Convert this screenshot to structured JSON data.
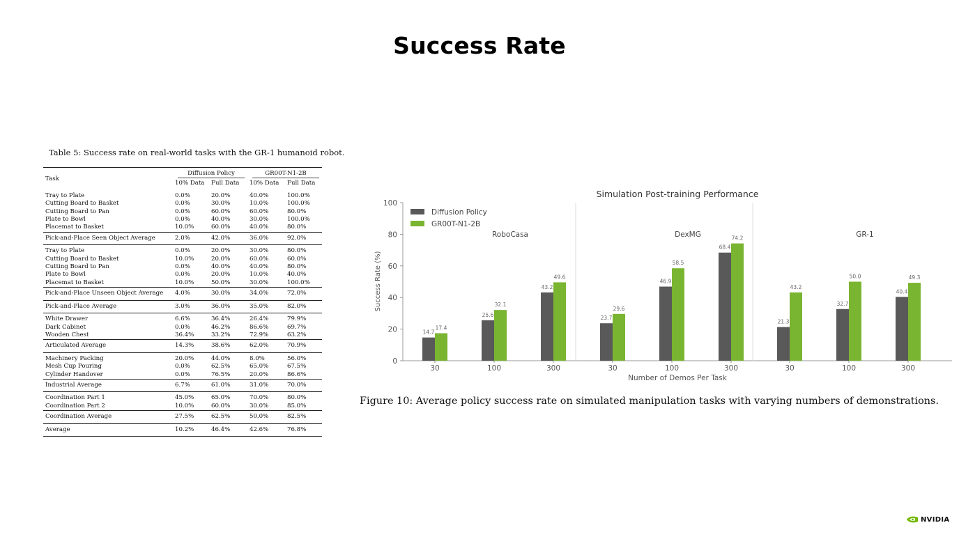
{
  "slide": {
    "title": "Success Rate",
    "brand": "NVIDIA"
  },
  "colors": {
    "diffusion": "#595959",
    "groot": "#7ab531",
    "nvidia_green": "#76b900"
  },
  "table": {
    "caption": "Table 5: Success rate on real-world tasks with the GR-1 humanoid robot.",
    "task_header": "Task",
    "group_headers": [
      "Diffusion Policy",
      "GR00T-N1-2B"
    ],
    "sub_headers": [
      "10% Data",
      "Full Data",
      "10% Data",
      "Full Data"
    ],
    "rows": [
      {
        "task": "Tray to Plate",
        "vals": [
          "0.0%",
          "20.0%",
          "40.0%",
          "100.0%"
        ]
      },
      {
        "task": "Cutting Board to Basket",
        "vals": [
          "0.0%",
          "30.0%",
          "10.0%",
          "100.0%"
        ]
      },
      {
        "task": "Cutting Board to Pan",
        "vals": [
          "0.0%",
          "60.0%",
          "60.0%",
          "80.0%"
        ]
      },
      {
        "task": "Plate to Bowl",
        "vals": [
          "0.0%",
          "40.0%",
          "30.0%",
          "100.0%"
        ]
      },
      {
        "task": "Placemat to Basket",
        "vals": [
          "10.0%",
          "60.0%",
          "40.0%",
          "80.0%"
        ]
      },
      {
        "task": "Pick-and-Place Seen Object Average",
        "vals": [
          "2.0%",
          "42.0%",
          "36.0%",
          "92.0%"
        ]
      },
      {
        "task": "Tray to Plate",
        "vals": [
          "0.0%",
          "20.0%",
          "30.0%",
          "80.0%"
        ]
      },
      {
        "task": "Cutting Board to Basket",
        "vals": [
          "10.0%",
          "20.0%",
          "60.0%",
          "60.0%"
        ]
      },
      {
        "task": "Cutting Board to Pan",
        "vals": [
          "0.0%",
          "40.0%",
          "40.0%",
          "80.0%"
        ]
      },
      {
        "task": "Plate to Bowl",
        "vals": [
          "0.0%",
          "20.0%",
          "10.0%",
          "40.0%"
        ]
      },
      {
        "task": "Placemat to Basket",
        "vals": [
          "10.0%",
          "50.0%",
          "30.0%",
          "100.0%"
        ]
      },
      {
        "task": "Pick-and-Place Unseen Object Average",
        "vals": [
          "4.0%",
          "30.0%",
          "34.0%",
          "72.0%"
        ]
      },
      {
        "task": "Pick-and-Place Average",
        "vals": [
          "3.0%",
          "36.0%",
          "35.0%",
          "82.0%"
        ]
      },
      {
        "task": "White Drawer",
        "vals": [
          "6.6%",
          "36.4%",
          "26.4%",
          "79.9%"
        ]
      },
      {
        "task": "Dark Cabinet",
        "vals": [
          "0.0%",
          "46.2%",
          "86.6%",
          "69.7%"
        ]
      },
      {
        "task": "Wooden Chest",
        "vals": [
          "36.4%",
          "33.2%",
          "72.9%",
          "63.2%"
        ]
      },
      {
        "task": "Articulated Average",
        "vals": [
          "14.3%",
          "38.6%",
          "62.0%",
          "70.9%"
        ]
      },
      {
        "task": "Machinery Packing",
        "vals": [
          "20.0%",
          "44.0%",
          "8.0%",
          "56.0%"
        ]
      },
      {
        "task": "Mesh Cup Pouring",
        "vals": [
          "0.0%",
          "62.5%",
          "65.0%",
          "67.5%"
        ]
      },
      {
        "task": "Cylinder Handover",
        "vals": [
          "0.0%",
          "76.5%",
          "20.0%",
          "86.6%"
        ]
      },
      {
        "task": "Industrial Average",
        "vals": [
          "6.7%",
          "61.0%",
          "31.0%",
          "70.0%"
        ]
      },
      {
        "task": "Coordination Part 1",
        "vals": [
          "45.0%",
          "65.0%",
          "70.0%",
          "80.0%"
        ]
      },
      {
        "task": "Coordination Part 2",
        "vals": [
          "10.0%",
          "60.0%",
          "30.0%",
          "85.0%"
        ]
      },
      {
        "task": "Coordination Average",
        "vals": [
          "27.5%",
          "62.5%",
          "50.0%",
          "82.5%"
        ]
      },
      {
        "task": "Average",
        "vals": [
          "10.2%",
          "46.4%",
          "42.6%",
          "76.8%"
        ]
      }
    ]
  },
  "chart_data": {
    "type": "bar",
    "title": "Simulation Post-training Performance",
    "xlabel": "Number of Demos Per Task",
    "ylabel": "Success Rate (%)",
    "ylim": [
      0,
      100
    ],
    "yticks": [
      0,
      20,
      40,
      60,
      80,
      100
    ],
    "grid": false,
    "legend_position": "top-left",
    "groups": [
      "RoboCasa",
      "DexMG",
      "GR-1"
    ],
    "categories": [
      "30",
      "100",
      "300",
      "30",
      "100",
      "300",
      "30",
      "100",
      "300"
    ],
    "series": [
      {
        "name": "Diffusion Policy",
        "values": [
          14.7,
          25.6,
          43.2,
          23.7,
          46.9,
          68.4,
          21.3,
          32.7,
          40.4
        ]
      },
      {
        "name": "GR00T-N1-2B",
        "values": [
          17.4,
          32.1,
          49.6,
          29.6,
          58.5,
          74.2,
          43.2,
          50.0,
          49.3
        ]
      }
    ]
  },
  "figure": {
    "caption": "Figure 10: Average policy success rate on simulated manipulation tasks with varying numbers of demonstrations."
  }
}
